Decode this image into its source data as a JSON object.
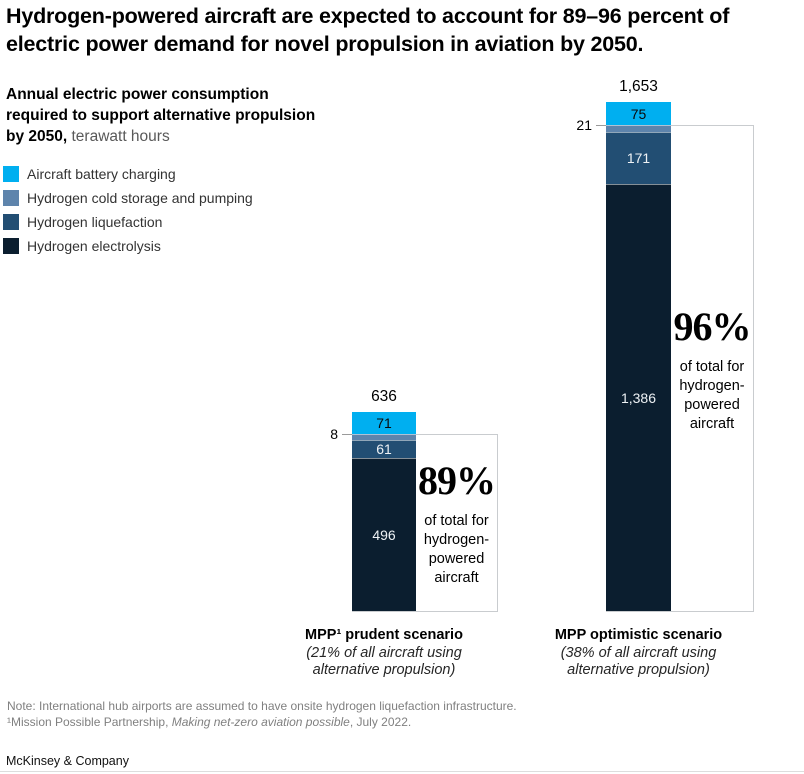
{
  "title": "Hydrogen-powered aircraft are expected to account for 89–96 percent of electric power demand for novel propulsion in aviation by 2050.",
  "subtitle": {
    "bold": "Annual electric power consumption required to support alternative propulsion by 2050,",
    "unit": " terawatt hours"
  },
  "legend": [
    {
      "label": "Aircraft battery charging",
      "color": "#00AFF0"
    },
    {
      "label": "Hydrogen cold storage and pumping",
      "color": "#5E84AC"
    },
    {
      "label": "Hydrogen liquefaction",
      "color": "#224E73"
    },
    {
      "label": "Hydrogen electrolysis",
      "color": "#0B1E2F"
    }
  ],
  "chart_data": {
    "type": "bar",
    "stacked": true,
    "unit": "terawatt hours",
    "categories": [
      "MPP¹ prudent scenario",
      "MPP optimistic scenario"
    ],
    "category_subs": [
      "(21% of all aircraft using alternative propulsion)",
      "(38% of all aircraft using alternative propulsion)"
    ],
    "series": [
      {
        "name": "Aircraft battery charging",
        "color": "#00AFF0",
        "values": [
          71,
          75
        ],
        "labels": [
          "71",
          "75"
        ]
      },
      {
        "name": "Hydrogen cold storage and pumping",
        "color": "#5E84AC",
        "values": [
          8,
          21
        ],
        "labels": [
          "8",
          "21"
        ]
      },
      {
        "name": "Hydrogen liquefaction",
        "color": "#224E73",
        "values": [
          61,
          171
        ],
        "labels": [
          "61",
          "171"
        ]
      },
      {
        "name": "Hydrogen electrolysis",
        "color": "#0B1E2F",
        "values": [
          496,
          1386
        ],
        "labels": [
          "496",
          "1,386"
        ]
      }
    ],
    "totals": [
      "636",
      "1,653"
    ],
    "annotations": [
      {
        "pct": "89%",
        "caption": "of total for hydrogen-powered aircraft"
      },
      {
        "pct": "96%",
        "caption": "of total for hydrogen-powered aircraft"
      }
    ]
  },
  "notes": {
    "line1": "Note: International hub airports are assumed to have onsite hydrogen liquefaction infrastructure.",
    "fn_prefix": "¹Mission Possible Partnership, ",
    "fn_italic": "Making net-zero aviation possible",
    "fn_suffix": ", July 2022."
  },
  "brand": "McKinsey & Company"
}
